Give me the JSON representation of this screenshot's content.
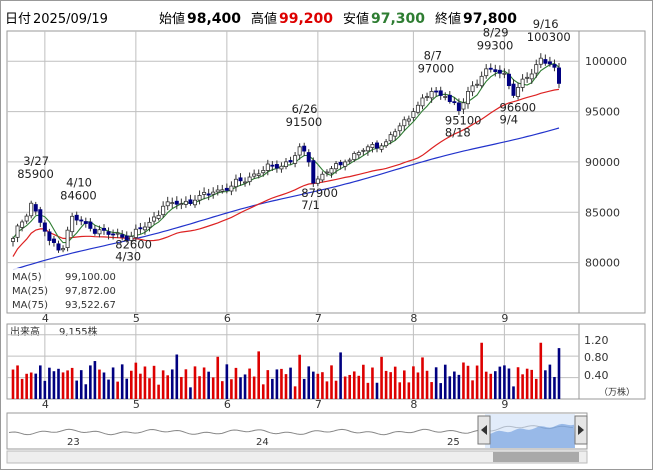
{
  "header": {
    "date_label": "日付",
    "date": "2025/09/19",
    "open_label": "始値",
    "open": "98,400",
    "high_label": "高値",
    "high": "99,200",
    "low_label": "安値",
    "low": "97,300",
    "close_label": "終値",
    "close": "97,800"
  },
  "colors": {
    "up": "#dd0000",
    "down": "#000080",
    "ma5": "#2e7d32",
    "ma25": "#dd2222",
    "ma75": "#2233cc",
    "grid": "#bfbfbf",
    "frame": "#9a9a9a"
  },
  "legend": [
    {
      "label": "MA(5)",
      "value": "99,100.00",
      "color": "#2e7d32"
    },
    {
      "label": "MA(25)",
      "value": "97,872.00",
      "color": "#dd2222"
    },
    {
      "label": "MA(75)",
      "value": "93,522.67",
      "color": "#2233cc"
    }
  ],
  "volume_panel": {
    "title": "出来高",
    "value": "9,155株",
    "ticks": [
      "1.20",
      "0.80",
      "0.40"
    ],
    "unit": "（万株）"
  },
  "navigator": {
    "year_labels": [
      "23",
      "24",
      "25"
    ]
  },
  "chart_data": {
    "type": "candlestick",
    "y_ticks": [
      "100000",
      "95000",
      "90000",
      "85000",
      "80000"
    ],
    "ylim": [
      75000,
      103000
    ],
    "month_labels": [
      "4",
      "5",
      "6",
      "7",
      "8",
      "9"
    ],
    "annotations": [
      {
        "date": "3/27",
        "price": "85900"
      },
      {
        "date": "4/10",
        "price": "84600"
      },
      {
        "date": "4/30",
        "price": "82600"
      },
      {
        "date": "6/26",
        "price": "91500"
      },
      {
        "date": "7/1",
        "price": "87900"
      },
      {
        "date": "8/7",
        "price": "97000"
      },
      {
        "date": "8/18",
        "price": "95100"
      },
      {
        "date": "8/29",
        "price": "99300"
      },
      {
        "date": "9/4",
        "price": "96600"
      },
      {
        "date": "9/16",
        "price": "100300"
      }
    ],
    "close_anchors": [
      [
        0,
        82400
      ],
      [
        4,
        85900
      ],
      [
        6,
        84000
      ],
      [
        8,
        82200
      ],
      [
        11,
        81400
      ],
      [
        13,
        84600
      ],
      [
        17,
        83400
      ],
      [
        21,
        82800
      ],
      [
        26,
        82600
      ],
      [
        30,
        84000
      ],
      [
        33,
        85600
      ],
      [
        36,
        85800
      ],
      [
        40,
        86200
      ],
      [
        44,
        87000
      ],
      [
        48,
        87600
      ],
      [
        53,
        88800
      ],
      [
        57,
        89600
      ],
      [
        61,
        90000
      ],
      [
        63,
        91500
      ],
      [
        65,
        90000
      ],
      [
        66,
        87900
      ],
      [
        69,
        89000
      ],
      [
        73,
        90000
      ],
      [
        78,
        91500
      ],
      [
        82,
        92000
      ],
      [
        84,
        93000
      ],
      [
        88,
        95000
      ],
      [
        92,
        97000
      ],
      [
        95,
        96500
      ],
      [
        98,
        95100
      ],
      [
        100,
        97000
      ],
      [
        103,
        98500
      ],
      [
        105,
        99300
      ],
      [
        108,
        98800
      ],
      [
        110,
        96600
      ],
      [
        113,
        98400
      ],
      [
        116,
        100300
      ],
      [
        119,
        99400
      ],
      [
        120,
        97800
      ]
    ],
    "volume_range": [
      0,
      1.4
    ]
  }
}
